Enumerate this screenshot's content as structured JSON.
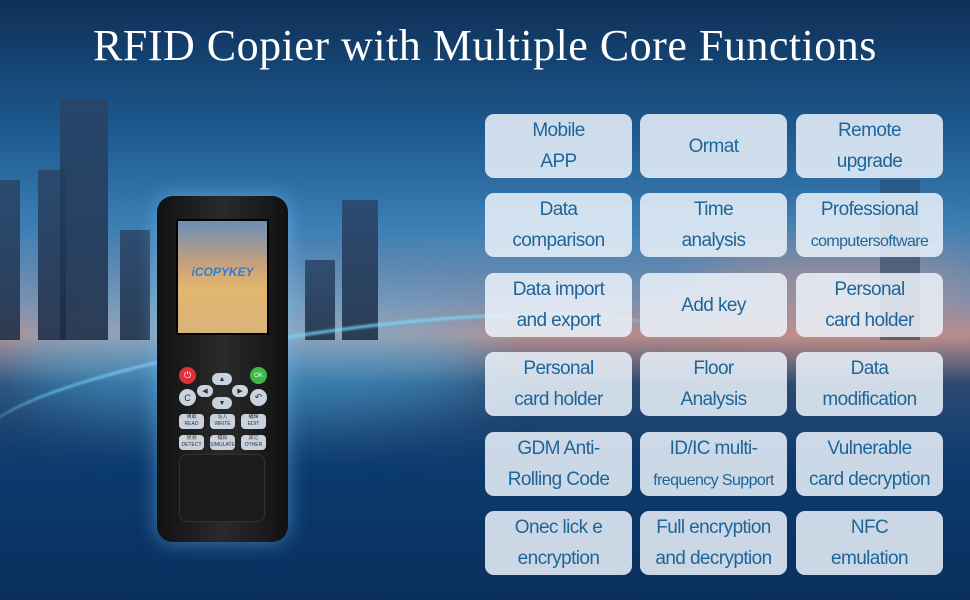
{
  "title": "RFID Copier with Multiple Core Functions",
  "device": {
    "brand_logo": "iCOPYKEY",
    "keys": [
      {
        "cn": "读取",
        "en": "READ"
      },
      {
        "cn": "写入",
        "en": "WRITE"
      },
      {
        "cn": "编辑",
        "en": "EDIT"
      },
      {
        "cn": "侦测",
        "en": "DETECT"
      },
      {
        "cn": "模拟",
        "en": "SIMULATE"
      },
      {
        "cn": "其它",
        "en": "OTHER"
      }
    ],
    "ok_label": "OK",
    "clear_label": "C"
  },
  "features": [
    "Mobile\nAPP",
    "Ormat",
    "Remote\nupgrade",
    "Data\ncomparison",
    "Time\nanalysis",
    "Professional\ncomputersoftware",
    "Data import\nand export",
    "Add key",
    "Personal\ncard holder",
    "Personal\ncard holder",
    "Floor\nAnalysis",
    "Data\nmodification",
    "GDM Anti-\nRolling Code",
    "ID/IC multi-\nfrequency Support",
    "Vulnerable\ncard decryption",
    "Onec lick e\nencryption",
    "Full encryption\nand decryption",
    "NFC\nemulation"
  ],
  "colors": {
    "text": "#1f6598",
    "cell": "#ebf2fa",
    "power": "#e0303a",
    "ok": "#3cb84a"
  }
}
